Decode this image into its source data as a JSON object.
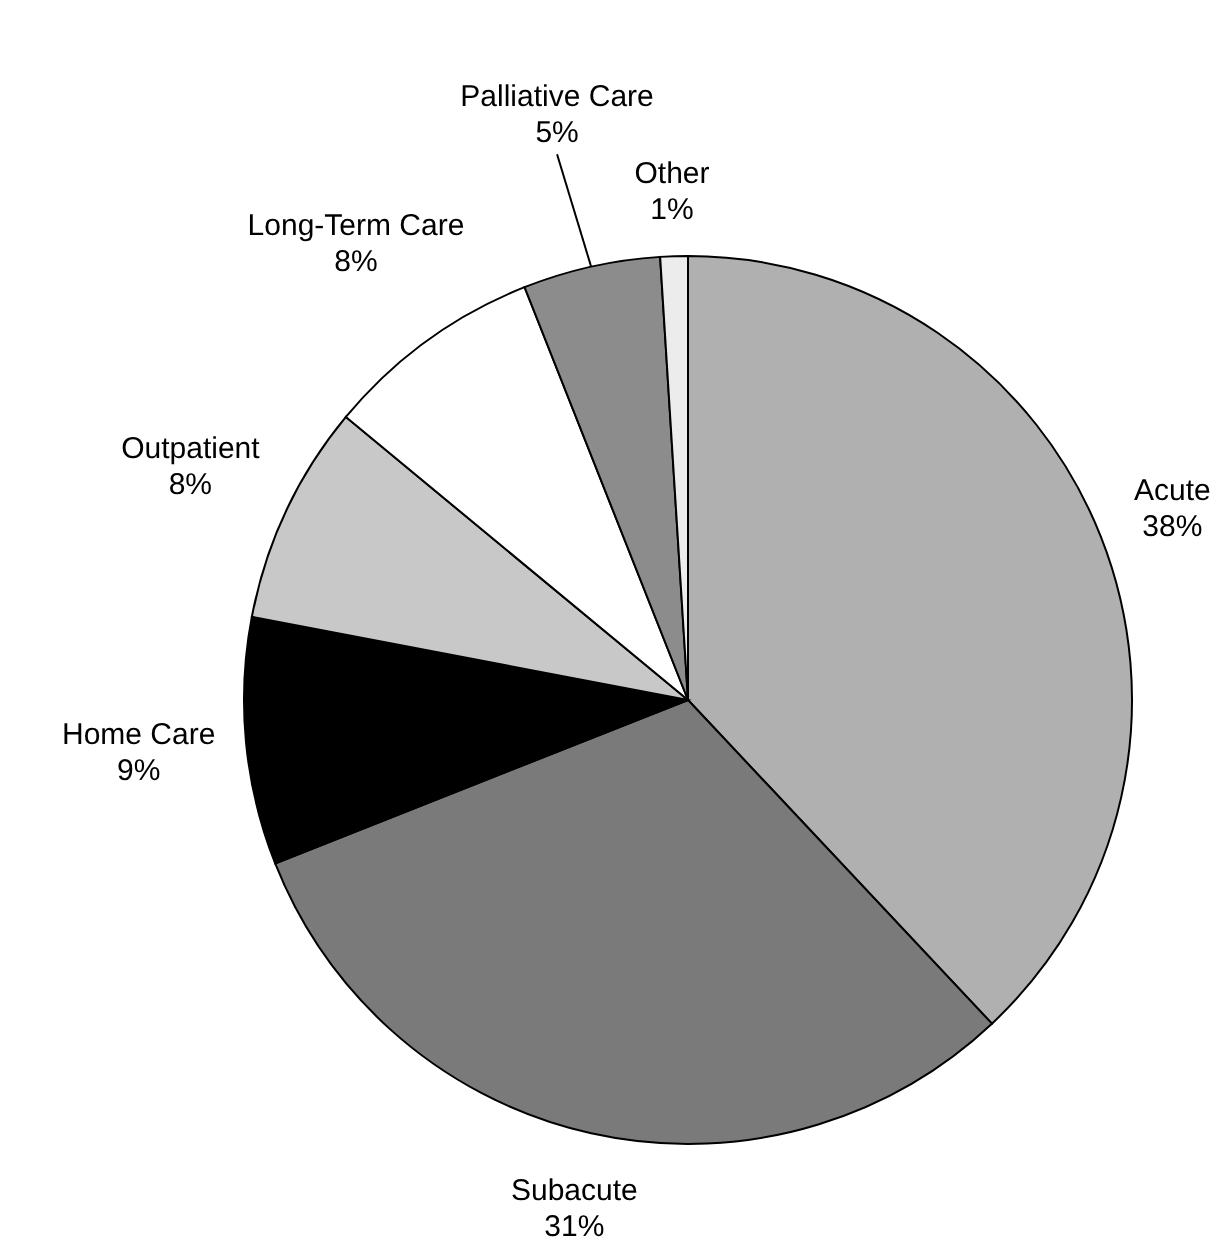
{
  "chart_data": {
    "type": "pie",
    "categories": [
      "Acute",
      "Subacute",
      "Home Care",
      "Outpatient",
      "Long-Term Care",
      "Palliative Care",
      "Other"
    ],
    "values": [
      38,
      31,
      9,
      8,
      8,
      5,
      1
    ],
    "value_labels": [
      "38%",
      "31%",
      "9%",
      "8%",
      "8%",
      "5%",
      "1%"
    ],
    "colors": [
      "#b0b0b0",
      "#7a7a7a",
      "#000000",
      "#c8c8c8",
      "#ffffff",
      "#8c8c8c",
      "#ececec"
    ]
  }
}
